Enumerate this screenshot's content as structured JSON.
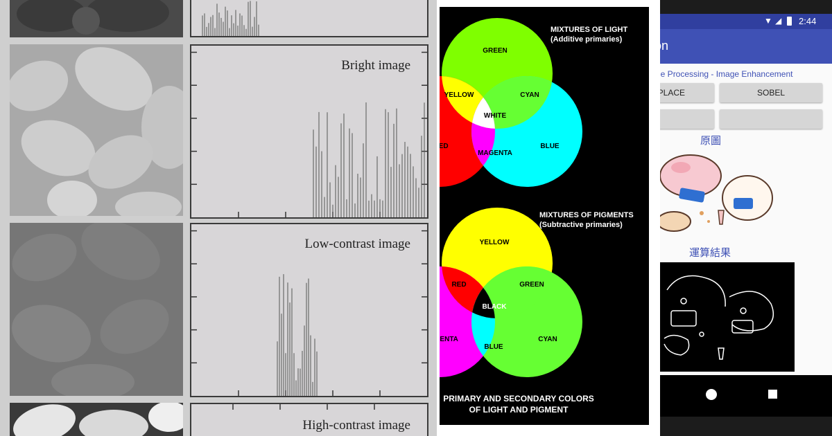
{
  "histogram_figure": {
    "panels": [
      {
        "label": "",
        "fill": "#5a5a5a"
      },
      {
        "label": "Bright image",
        "fill": "#b9b9b9"
      },
      {
        "label": "Low-contrast image",
        "fill": "#767676"
      },
      {
        "label": "High-contrast image",
        "fill": "#8a8a8a"
      }
    ]
  },
  "color_mixing": {
    "light_heading": [
      "MIXTURES OF LIGHT",
      "(Additive primaries)"
    ],
    "light_labels": {
      "green": "GREEN",
      "yellow": "YELLOW",
      "cyan": "CYAN",
      "white": "WHITE",
      "red": "RED",
      "magenta": "MAGENTA",
      "blue": "BLUE"
    },
    "pigment_heading": [
      "MIXTURES OF PIGMENTS",
      "(Subtractive primaries)"
    ],
    "pigment_labels": {
      "yellow": "YELLOW",
      "red": "RED",
      "green": "GREEN",
      "black": "BLACK",
      "magenta": "MAGENTA",
      "blue": "BLUE",
      "cyan": "CYAN"
    },
    "caption": [
      "PRIMARY AND SECONDARY COLORS",
      "OF LIGHT AND PIGMENT"
    ],
    "colors": {
      "green": "#7fff00",
      "yellow": "#ffff00",
      "cyan": "#00ffff",
      "red": "#ff0000",
      "magenta": "#ff00ff",
      "blue": "#00ffff"
    }
  },
  "phone": {
    "status_time": "2:44",
    "app_title": "Application",
    "subtitle": "Image Processing - Image Enhancement",
    "buttons": {
      "laplace": "LAPLACE",
      "sobel": "SOBEL",
      "btn3": "",
      "btn4": ""
    },
    "original_label": "原圖",
    "result_label": "運算結果",
    "colors": {
      "status": "#303f9f",
      "appbar": "#3f51b5",
      "accent": "#3f51b5"
    }
  }
}
